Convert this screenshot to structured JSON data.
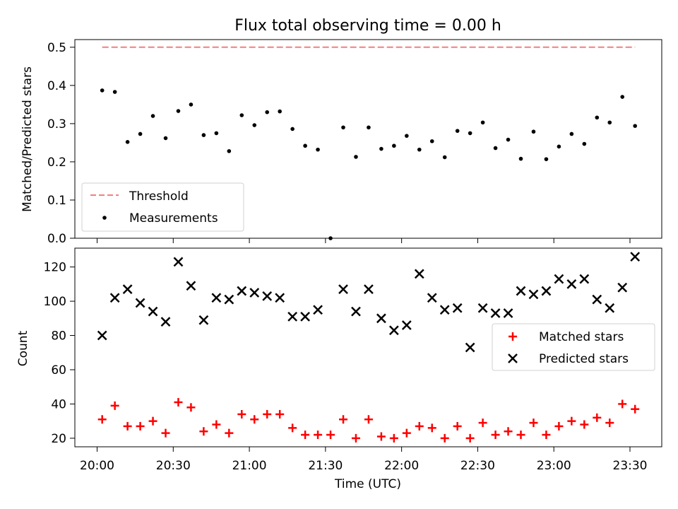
{
  "chart_data": [
    {
      "type": "scatter",
      "title": "Flux total observing time = 0.00 h",
      "ylabel": "Matched/Predicted stars",
      "xlabel": "",
      "ylim": [
        0,
        0.52
      ],
      "y_ticks": [
        "0.0",
        "0.1",
        "0.2",
        "0.3",
        "0.4",
        "0.5"
      ],
      "threshold": {
        "name": "Threshold",
        "value": 0.5,
        "x_start": "20:02",
        "x_end": "23:32",
        "color": "#f08080"
      },
      "legend": {
        "placement": "lower-left"
      },
      "series": [
        {
          "name": "Measurements",
          "color": "#000000",
          "x": [
            "20:02",
            "20:07",
            "20:12",
            "20:17",
            "20:22",
            "20:27",
            "20:32",
            "20:37",
            "20:42",
            "20:47",
            "20:52",
            "20:57",
            "21:02",
            "21:07",
            "21:12",
            "21:17",
            "21:22",
            "21:27",
            "21:32",
            "21:37",
            "21:42",
            "21:47",
            "21:52",
            "21:57",
            "22:02",
            "22:07",
            "22:12",
            "22:17",
            "22:22",
            "22:27",
            "22:32",
            "22:37",
            "22:42",
            "22:47",
            "22:52",
            "22:57",
            "23:02",
            "23:07",
            "23:12",
            "23:17",
            "23:22",
            "23:27",
            "23:32"
          ],
          "y": [
            0.387,
            0.383,
            0.252,
            0.273,
            0.32,
            0.262,
            0.333,
            0.35,
            0.27,
            0.275,
            0.228,
            0.322,
            0.296,
            0.33,
            0.332,
            0.286,
            0.242,
            0.232,
            0.0,
            0.29,
            0.213,
            0.29,
            0.234,
            0.242,
            0.268,
            0.232,
            0.254,
            0.212,
            0.281,
            0.275,
            0.303,
            0.236,
            0.258,
            0.208,
            0.279,
            0.207,
            0.24,
            0.273,
            0.247,
            0.316,
            0.303,
            0.37,
            0.294
          ]
        }
      ]
    },
    {
      "type": "scatter",
      "title": "",
      "ylabel": "Count",
      "xlabel": "Time (UTC)",
      "ylim": [
        15,
        131
      ],
      "y_ticks": [
        "20",
        "40",
        "60",
        "80",
        "100",
        "120"
      ],
      "x_ticks": [
        "20:00",
        "20:30",
        "21:00",
        "21:30",
        "22:00",
        "22:30",
        "23:00",
        "23:30"
      ],
      "legend": {
        "placement": "center-right"
      },
      "series": [
        {
          "name": "Matched stars",
          "color": "#ff0000",
          "marker": "+",
          "x": [
            "20:02",
            "20:07",
            "20:12",
            "20:17",
            "20:22",
            "20:27",
            "20:32",
            "20:37",
            "20:42",
            "20:47",
            "20:52",
            "20:57",
            "21:02",
            "21:07",
            "21:12",
            "21:17",
            "21:22",
            "21:27",
            "21:32",
            "21:37",
            "21:42",
            "21:47",
            "21:52",
            "21:57",
            "22:02",
            "22:07",
            "22:12",
            "22:17",
            "22:22",
            "22:27",
            "22:32",
            "22:37",
            "22:42",
            "22:47",
            "22:52",
            "22:57",
            "23:02",
            "23:07",
            "23:12",
            "23:17",
            "23:22",
            "23:27",
            "23:32"
          ],
          "y": [
            31,
            39,
            27,
            27,
            30,
            23,
            41,
            38,
            24,
            28,
            23,
            34,
            31,
            34,
            34,
            26,
            22,
            22,
            22,
            31,
            20,
            31,
            21,
            20,
            23,
            27,
            26,
            20,
            27,
            20,
            29,
            22,
            24,
            22,
            29,
            22,
            27,
            30,
            28,
            32,
            29,
            40,
            37
          ]
        },
        {
          "name": "Predicted stars",
          "color": "#000000",
          "marker": "x",
          "x": [
            "20:02",
            "20:07",
            "20:12",
            "20:17",
            "20:22",
            "20:27",
            "20:32",
            "20:37",
            "20:42",
            "20:47",
            "20:52",
            "20:57",
            "21:02",
            "21:07",
            "21:12",
            "21:17",
            "21:22",
            "21:27",
            "21:32",
            "21:37",
            "21:42",
            "21:47",
            "21:52",
            "21:57",
            "22:02",
            "22:07",
            "22:12",
            "22:17",
            "22:22",
            "22:27",
            "22:32",
            "22:37",
            "22:42",
            "22:47",
            "22:52",
            "22:57",
            "23:02",
            "23:07",
            "23:12",
            "23:17",
            "23:22",
            "23:27",
            "23:32"
          ],
          "y": [
            80,
            102,
            107,
            99,
            94,
            88,
            123,
            109,
            89,
            102,
            101,
            106,
            105,
            103,
            102,
            91,
            91,
            95,
            null,
            107,
            94,
            107,
            90,
            83,
            86,
            116,
            102,
            95,
            96,
            73,
            96,
            93,
            93,
            106,
            104,
            106,
            113,
            110,
            113,
            101,
            96,
            108,
            126
          ]
        }
      ]
    }
  ]
}
